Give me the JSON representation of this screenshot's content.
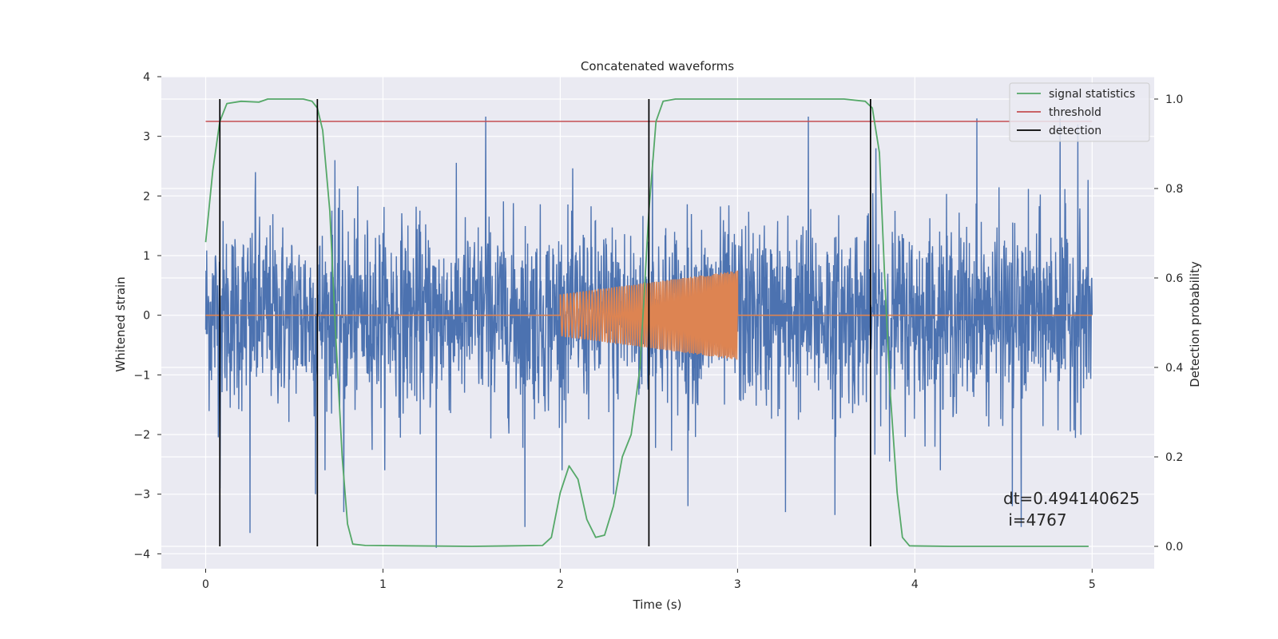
{
  "chart_data": {
    "type": "line",
    "title": "Concatenated waveforms",
    "xlabel": "Time (s)",
    "ylabel": "Whitened strain",
    "y2label": "Detection probability",
    "xlim": [
      -0.25,
      5.35
    ],
    "ylim": [
      -4.25,
      4.0
    ],
    "y2lim": [
      -0.05,
      1.05
    ],
    "xticks": [
      0,
      1,
      2,
      3,
      4,
      5
    ],
    "yticks": [
      -4,
      -3,
      -2,
      -1,
      0,
      1,
      2,
      3,
      4
    ],
    "y2ticks": [
      0.0,
      0.2,
      0.4,
      0.6,
      0.8,
      1.0
    ],
    "grid": true,
    "legend_position": "top-right",
    "legend": [
      "signal statistics",
      "threshold",
      "detection"
    ],
    "colors": {
      "noise": "#4c72b0",
      "injection": "#dd8452",
      "signal_statistics": "#55a868",
      "threshold": "#c44e52",
      "detection": "#000000",
      "background": "#eaeaf2",
      "grid": "#ffffff"
    },
    "series": [
      {
        "name": "",
        "axis": "left",
        "description_role": "whitened noise strain",
        "x_range": [
          0,
          5
        ],
        "envelope_typical": [
          -1.8,
          2.0
        ],
        "peaks_high": [
          [
            0.28,
            2.4
          ],
          [
            0.73,
            2.6
          ],
          [
            1.58,
            3.33
          ],
          [
            2.52,
            2.6
          ],
          [
            3.4,
            3.33
          ],
          [
            3.78,
            2.8
          ],
          [
            4.35,
            3.3
          ],
          [
            4.82,
            3.3
          ],
          [
            4.92,
            3.2
          ]
        ],
        "peaks_low": [
          [
            0.08,
            -2.9
          ],
          [
            0.25,
            -3.65
          ],
          [
            0.62,
            -3.0
          ],
          [
            0.78,
            -3.3
          ],
          [
            1.3,
            -3.9
          ],
          [
            1.8,
            -3.55
          ],
          [
            2.3,
            -3.0
          ],
          [
            2.72,
            -3.2
          ],
          [
            3.27,
            -3.3
          ],
          [
            3.55,
            -3.35
          ],
          [
            4.55,
            -3.2
          ],
          [
            4.6,
            -3.55
          ]
        ]
      },
      {
        "name": "",
        "axis": "left",
        "description_role": "injected chirp",
        "points": [
          [
            0,
            0
          ],
          [
            2.0,
            0
          ],
          [
            2.0,
            0.35
          ],
          [
            2.5,
            0.55
          ],
          [
            3.0,
            0.75
          ],
          [
            3.0,
            0
          ],
          [
            5.0,
            0
          ]
        ]
      },
      {
        "name": "signal statistics",
        "axis": "right",
        "points": [
          [
            0.0,
            0.68
          ],
          [
            0.04,
            0.84
          ],
          [
            0.08,
            0.95
          ],
          [
            0.12,
            0.99
          ],
          [
            0.2,
            0.995
          ],
          [
            0.3,
            0.993
          ],
          [
            0.35,
            1.0
          ],
          [
            0.55,
            1.0
          ],
          [
            0.6,
            0.995
          ],
          [
            0.63,
            0.98
          ],
          [
            0.66,
            0.93
          ],
          [
            0.7,
            0.75
          ],
          [
            0.73,
            0.5
          ],
          [
            0.77,
            0.2
          ],
          [
            0.8,
            0.05
          ],
          [
            0.83,
            0.005
          ],
          [
            0.9,
            0.002
          ],
          [
            1.5,
            0.0
          ],
          [
            1.9,
            0.002
          ],
          [
            1.95,
            0.02
          ],
          [
            2.0,
            0.12
          ],
          [
            2.05,
            0.18
          ],
          [
            2.1,
            0.15
          ],
          [
            2.15,
            0.06
          ],
          [
            2.2,
            0.02
          ],
          [
            2.25,
            0.025
          ],
          [
            2.3,
            0.09
          ],
          [
            2.35,
            0.2
          ],
          [
            2.4,
            0.25
          ],
          [
            2.45,
            0.4
          ],
          [
            2.5,
            0.75
          ],
          [
            2.54,
            0.95
          ],
          [
            2.58,
            0.995
          ],
          [
            2.65,
            1.0
          ],
          [
            3.6,
            1.0
          ],
          [
            3.72,
            0.995
          ],
          [
            3.76,
            0.98
          ],
          [
            3.8,
            0.88
          ],
          [
            3.83,
            0.6
          ],
          [
            3.86,
            0.35
          ],
          [
            3.9,
            0.12
          ],
          [
            3.93,
            0.02
          ],
          [
            3.97,
            0.001
          ],
          [
            4.2,
            0.0
          ],
          [
            4.98,
            0.0
          ]
        ]
      },
      {
        "name": "threshold",
        "axis": "right",
        "points": [
          [
            0,
            0.95
          ],
          [
            5,
            0.95
          ]
        ]
      },
      {
        "name": "detection",
        "axis": "right",
        "vertical_lines_at_x": [
          0.08,
          0.63,
          2.5,
          3.75
        ],
        "y_span": [
          0,
          1.0
        ]
      }
    ],
    "annotation": "dt=0.494140625\n i=4767",
    "annotation_lines": [
      "dt=0.494140625",
      " i=4767"
    ]
  }
}
